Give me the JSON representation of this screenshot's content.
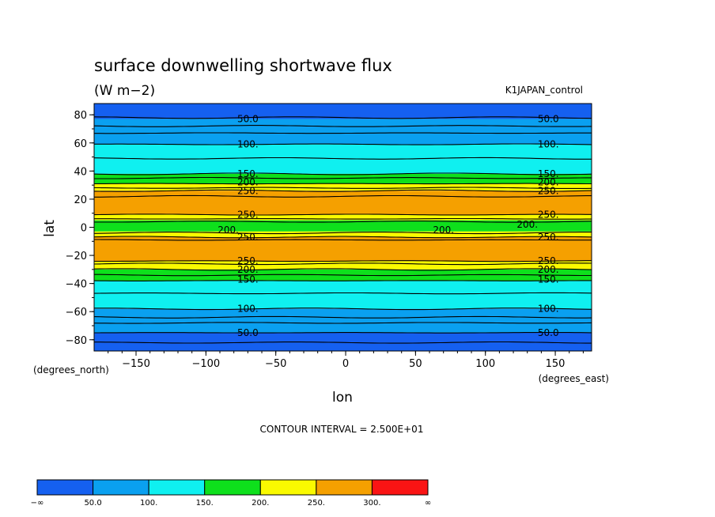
{
  "chart_data": {
    "type": "heatmap",
    "title": "surface downwelling shortwave flux",
    "units": "(W m−2)",
    "dataset": "K1JAPAN_control",
    "xlabel": "lon",
    "ylabel": "lat",
    "x_units_label": "(degrees_east)",
    "y_units_label": "(degrees_north)",
    "xlim": [
      -180,
      176
    ],
    "ylim": [
      -88,
      88
    ],
    "x_ticks": [
      -150,
      -100,
      -50,
      0,
      50,
      100,
      150
    ],
    "x_tick_labels": [
      "−150",
      "−100",
      "−50",
      "0",
      "50",
      "100",
      "150"
    ],
    "y_ticks": [
      80,
      60,
      40,
      20,
      0,
      -20,
      -40,
      -60,
      -80
    ],
    "y_tick_labels": [
      "80",
      "60",
      "40",
      "20",
      "0",
      "−20",
      "−40",
      "−60",
      "−80"
    ],
    "contour_interval_text": "CONTOUR INTERVAL = 2.500E+01",
    "levels": [
      50,
      100,
      150,
      200,
      250,
      300
    ],
    "colorbar_labels": [
      "−∞",
      "50.0",
      "100.",
      "150.",
      "200.",
      "250.",
      "300.",
      "∞"
    ],
    "band_colors": [
      "#1560f0",
      "#0aa0f0",
      "#0ff0f0",
      "#0ee01c",
      "#fafa00",
      "#f5a000",
      "#fa1414"
    ],
    "bands": [
      {
        "lat_from": 88,
        "lat_to": 77,
        "value_range": [
          -1000000000.0,
          50
        ]
      },
      {
        "lat_from": 77,
        "lat_to": 59,
        "value_range": [
          50,
          100
        ]
      },
      {
        "lat_from": 59,
        "lat_to": 38,
        "value_range": [
          100,
          150
        ]
      },
      {
        "lat_from": 38,
        "lat_to": 31,
        "value_range": [
          150,
          200
        ]
      },
      {
        "lat_from": 31,
        "lat_to": 26,
        "value_range": [
          200,
          250
        ]
      },
      {
        "lat_from": 26,
        "lat_to": 9,
        "value_range": [
          250,
          300
        ]
      },
      {
        "lat_from": 9,
        "lat_to": 5,
        "value_range": [
          200,
          250
        ]
      },
      {
        "lat_from": 5,
        "lat_to": -3,
        "value_range": [
          150,
          200
        ]
      },
      {
        "lat_from": -3,
        "lat_to": -7,
        "value_range": [
          200,
          250
        ]
      },
      {
        "lat_from": -7,
        "lat_to": -24,
        "value_range": [
          250,
          300
        ]
      },
      {
        "lat_from": -24,
        "lat_to": -30,
        "value_range": [
          200,
          250
        ]
      },
      {
        "lat_from": -30,
        "lat_to": -38,
        "value_range": [
          150,
          200
        ]
      },
      {
        "lat_from": -38,
        "lat_to": -58,
        "value_range": [
          100,
          150
        ]
      },
      {
        "lat_from": -58,
        "lat_to": -75,
        "value_range": [
          50,
          100
        ]
      },
      {
        "lat_from": -75,
        "lat_to": -88,
        "value_range": [
          -1000000000.0,
          50
        ]
      }
    ],
    "contour_lines_lat": [
      78,
      72,
      67,
      59,
      49,
      38,
      35,
      31,
      28,
      26,
      22,
      9,
      6,
      4,
      -4,
      -7,
      -9,
      -24,
      -26,
      -30,
      -34,
      -38,
      -47,
      -58,
      -64,
      -68,
      -75,
      -82
    ],
    "contour_labels": [
      {
        "text": "50.0",
        "lon": -70,
        "lat": 77
      },
      {
        "text": "50.0",
        "lon": 145,
        "lat": 77
      },
      {
        "text": "100.",
        "lon": -70,
        "lat": 59
      },
      {
        "text": "100.",
        "lon": 145,
        "lat": 59
      },
      {
        "text": "150.",
        "lon": -70,
        "lat": 38
      },
      {
        "text": "150.",
        "lon": 145,
        "lat": 38
      },
      {
        "text": "200.",
        "lon": -70,
        "lat": 32
      },
      {
        "text": "200.",
        "lon": 145,
        "lat": 32
      },
      {
        "text": "250.",
        "lon": -70,
        "lat": 26
      },
      {
        "text": "250.",
        "lon": 145,
        "lat": 26
      },
      {
        "text": "250.",
        "lon": -70,
        "lat": 9
      },
      {
        "text": "250.",
        "lon": 145,
        "lat": 9
      },
      {
        "text": "200.",
        "lon": -84,
        "lat": -2
      },
      {
        "text": "200.",
        "lon": 70,
        "lat": -2
      },
      {
        "text": "200.",
        "lon": 130,
        "lat": 2
      },
      {
        "text": "250.",
        "lon": -70,
        "lat": -7
      },
      {
        "text": "250.",
        "lon": 145,
        "lat": -7
      },
      {
        "text": "250.",
        "lon": -70,
        "lat": -24
      },
      {
        "text": "250.",
        "lon": 145,
        "lat": -24
      },
      {
        "text": "200.",
        "lon": -70,
        "lat": -30
      },
      {
        "text": "200.",
        "lon": 145,
        "lat": -30
      },
      {
        "text": "150.",
        "lon": -70,
        "lat": -37
      },
      {
        "text": "150.",
        "lon": 145,
        "lat": -37
      },
      {
        "text": "100.",
        "lon": -70,
        "lat": -58
      },
      {
        "text": "100.",
        "lon": 145,
        "lat": -58
      },
      {
        "text": "50.0",
        "lon": -70,
        "lat": -75
      },
      {
        "text": "50.0",
        "lon": 145,
        "lat": -75
      }
    ]
  }
}
